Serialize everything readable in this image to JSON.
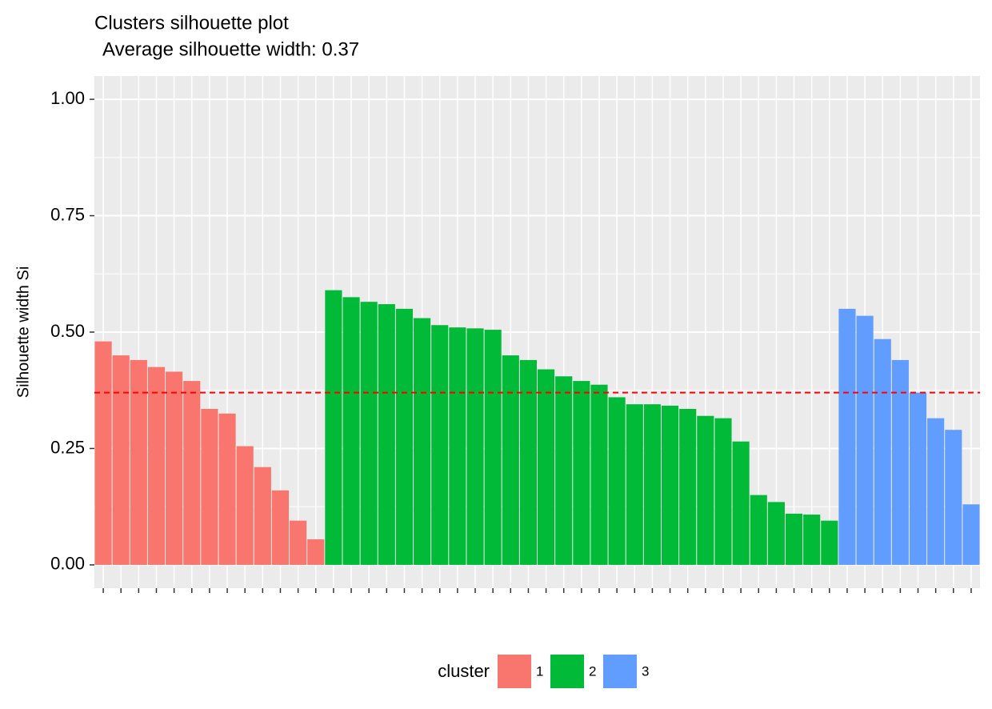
{
  "chart_data": {
    "type": "bar",
    "title": "Clusters silhouette plot",
    "subtitle": "Average silhouette width: 0.37",
    "y_label": "Silhouette width Si",
    "legend_title": "cluster",
    "legend_position": "bottom",
    "average": 0.37,
    "average_line_color": "#ff0000",
    "grid": true,
    "background": "#ebebeb",
    "ylim": [
      -0.05,
      1.05
    ],
    "yticks": [
      {
        "value": 0,
        "label": "0.00"
      },
      0.25,
      {
        "value": 0.5,
        "label": "0.50"
      },
      0.75,
      {
        "value": 1,
        "label": "1.00"
      }
    ],
    "series": [
      {
        "name": "1",
        "color": "#f8766d",
        "values": [
          0.48,
          0.45,
          0.44,
          0.425,
          0.415,
          0.395,
          0.335,
          0.325,
          0.255,
          0.21,
          0.16,
          0.095,
          0.055
        ]
      },
      {
        "name": "2",
        "color": "#00ba38",
        "values": [
          0.59,
          0.575,
          0.565,
          0.56,
          0.55,
          0.53,
          0.515,
          0.51,
          0.508,
          0.505,
          0.45,
          0.44,
          0.42,
          0.405,
          0.395,
          0.387,
          0.36,
          0.345,
          0.345,
          0.342,
          0.335,
          0.32,
          0.315,
          0.265,
          0.15,
          0.135,
          0.11,
          0.108,
          0.095
        ]
      },
      {
        "name": "3",
        "color": "#619cff",
        "values": [
          0.55,
          0.535,
          0.485,
          0.44,
          0.37,
          0.315,
          0.29,
          0.13
        ]
      }
    ]
  }
}
